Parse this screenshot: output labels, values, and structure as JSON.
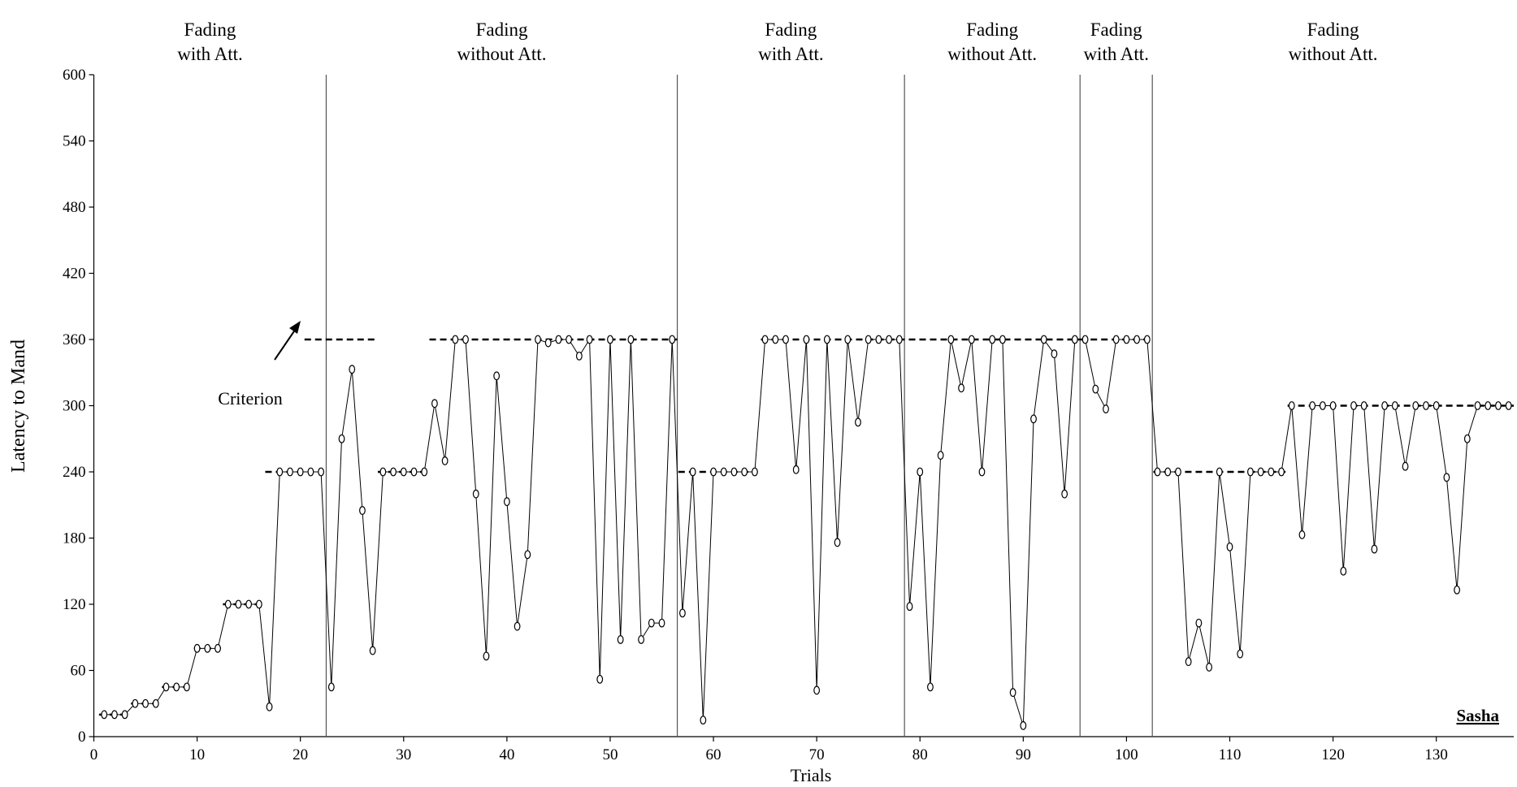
{
  "chart_data": {
    "type": "line",
    "y_label": "Latency to Mand",
    "x_label": "Trials",
    "xlim": [
      0,
      137.5
    ],
    "xticks": [
      0,
      10,
      20,
      30,
      40,
      50,
      60,
      70,
      80,
      90,
      100,
      110,
      120,
      130
    ],
    "ylim": [
      0,
      600
    ],
    "yticks": [
      0,
      60,
      120,
      180,
      240,
      300,
      360,
      420,
      480,
      540,
      600
    ],
    "x": [
      1,
      2,
      3,
      4,
      5,
      6,
      7,
      8,
      9,
      10,
      11,
      12,
      13,
      14,
      15,
      16,
      17,
      18,
      19,
      20,
      21,
      22,
      23,
      24,
      25,
      26,
      27,
      28,
      29,
      30,
      31,
      32,
      33,
      34,
      35,
      36,
      37,
      38,
      39,
      40,
      41,
      42,
      43,
      44,
      45,
      46,
      47,
      48,
      49,
      50,
      51,
      52,
      53,
      54,
      55,
      56,
      57,
      58,
      59,
      60,
      61,
      62,
      63,
      64,
      65,
      66,
      67,
      68,
      69,
      70,
      71,
      72,
      73,
      74,
      75,
      76,
      77,
      78,
      79,
      80,
      81,
      82,
      83,
      84,
      85,
      86,
      87,
      88,
      89,
      90,
      91,
      92,
      93,
      94,
      95,
      96,
      97,
      98,
      99,
      100,
      101,
      102,
      103,
      104,
      105,
      106,
      107,
      108,
      109,
      110,
      111,
      112,
      113,
      114,
      115,
      116,
      117,
      118,
      119,
      120,
      121,
      122,
      123,
      124,
      125,
      126,
      127,
      128,
      129,
      130,
      131,
      132,
      133,
      134,
      135,
      136,
      137
    ],
    "series": [
      {
        "color": "#000000",
        "values": [
          20,
          20,
          20,
          30,
          30,
          30,
          45,
          45,
          45,
          80,
          80,
          80,
          120,
          120,
          120,
          120,
          27,
          240,
          240,
          240,
          240,
          240,
          45,
          270,
          333,
          205,
          78,
          240,
          240,
          240,
          240,
          240,
          302,
          250,
          360,
          360,
          220,
          73,
          327,
          213,
          100,
          165,
          360,
          357,
          360,
          360,
          345,
          360,
          52,
          360,
          88,
          360,
          88,
          103,
          103,
          360,
          112,
          240,
          15,
          240,
          240,
          240,
          240,
          240,
          360,
          360,
          360,
          242,
          360,
          42,
          360,
          176,
          360,
          285,
          360,
          360,
          360,
          360,
          118,
          240,
          45,
          255,
          360,
          316,
          360,
          240,
          360,
          360,
          40,
          10,
          288,
          360,
          347,
          220,
          360,
          360,
          315,
          297,
          360,
          360,
          360,
          360,
          240,
          240,
          240,
          68,
          103,
          63,
          240,
          172,
          75,
          240,
          240,
          240,
          240,
          300,
          183,
          300,
          300,
          300,
          150,
          300,
          300,
          170,
          300,
          300,
          245,
          300,
          300,
          300,
          235,
          133,
          270,
          300,
          300,
          300,
          300
        ]
      }
    ],
    "phase_lines": [
      22.5,
      56.5,
      78.5,
      95.5,
      102.5
    ],
    "phases": [
      [
        "Fading",
        "with Att."
      ],
      [
        "Fading",
        "without Att."
      ],
      [
        "Fading",
        "with Att."
      ],
      [
        "Fading",
        "without Att."
      ],
      [
        "Fading",
        "with Att."
      ],
      [
        "Fading",
        "without Att."
      ]
    ],
    "criterion": [
      {
        "x": [
          0.5,
          3.3
        ],
        "y": 20
      },
      {
        "x": [
          3.6,
          6.3
        ],
        "y": 30
      },
      {
        "x": [
          6.6,
          9.3
        ],
        "y": 45
      },
      {
        "x": [
          9.7,
          12.3
        ],
        "y": 80
      },
      {
        "x": [
          12.5,
          16.2
        ],
        "y": 120
      },
      {
        "x": [
          16.6,
          20.4
        ],
        "y": 240
      },
      {
        "x": [
          20.4,
          27.2
        ],
        "y": 360
      },
      {
        "x": [
          27.5,
          32.3
        ],
        "y": 240
      },
      {
        "x": [
          32.5,
          56.5
        ],
        "y": 360
      },
      {
        "x": [
          56.6,
          64.3
        ],
        "y": 240
      },
      {
        "x": [
          64.6,
          95.5
        ],
        "y": 360
      },
      {
        "x": [
          95.5,
          102.4
        ],
        "y": 360
      },
      {
        "x": [
          102.6,
          115.4
        ],
        "y": 240
      },
      {
        "x": [
          115.6,
          137.5
        ],
        "y": 300
      }
    ],
    "annotations": {
      "criterion": "Criterion",
      "subject": "Sasha"
    }
  }
}
